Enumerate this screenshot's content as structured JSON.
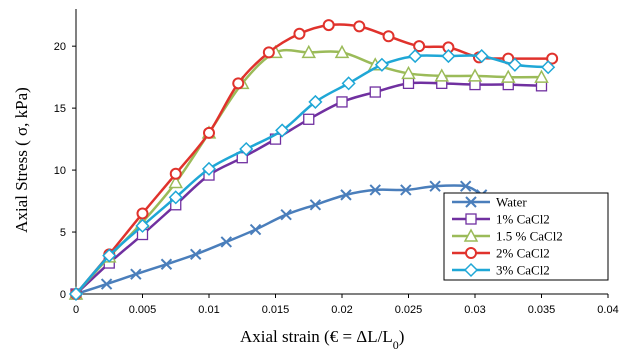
{
  "chart_data": {
    "type": "line",
    "xlabel": "Axial strain (€ = ΔL/L",
    "xlabel_sub": "0",
    "xlabel_close": ")",
    "ylabel": "Axial Stress ( σ, kPa)",
    "xlim": [
      0,
      0.04
    ],
    "ylim": [
      0,
      23
    ],
    "xticks": [
      0,
      0.005,
      0.01,
      0.015,
      0.02,
      0.025,
      0.03,
      0.035,
      0.04
    ],
    "xtick_labels": [
      "0",
      "0.005",
      "0.01",
      "0.015",
      "0.02",
      "0.025",
      "0.03",
      "0.035",
      "0.04"
    ],
    "yticks": [
      0,
      5,
      10,
      15,
      20
    ],
    "ytick_labels": [
      "0",
      "5",
      "10",
      "15",
      "20"
    ],
    "grid": false,
    "legend_position": "bottom-right",
    "series": [
      {
        "name": "Water",
        "color": "#4a7ebb",
        "marker": "x",
        "x": [
          0,
          0.0023,
          0.0045,
          0.0068,
          0.009,
          0.0113,
          0.0135,
          0.0158,
          0.018,
          0.0203,
          0.0225,
          0.0248,
          0.027,
          0.0293,
          0.0305
        ],
        "y": [
          0,
          0.8,
          1.6,
          2.4,
          3.2,
          4.2,
          5.2,
          6.4,
          7.2,
          8.0,
          8.4,
          8.4,
          8.7,
          8.7,
          8.0
        ]
      },
      {
        "name": "1% CaCl2",
        "color": "#7030a0",
        "marker": "square",
        "x": [
          0,
          0.0025,
          0.005,
          0.0075,
          0.01,
          0.0125,
          0.015,
          0.0175,
          0.02,
          0.0225,
          0.025,
          0.0275,
          0.03,
          0.0325,
          0.035
        ],
        "y": [
          0,
          2.5,
          4.8,
          7.2,
          9.6,
          11.0,
          12.5,
          14.1,
          15.5,
          16.3,
          17.0,
          17.0,
          16.9,
          16.9,
          16.8
        ]
      },
      {
        "name": "1.5 % CaCl2",
        "color": "#9bbb59",
        "marker": "triangle",
        "x": [
          0,
          0.0025,
          0.005,
          0.0075,
          0.01,
          0.0125,
          0.015,
          0.0175,
          0.02,
          0.0225,
          0.025,
          0.0275,
          0.03,
          0.0325,
          0.035
        ],
        "y": [
          0,
          3.0,
          5.8,
          9.0,
          13.0,
          17.0,
          19.5,
          19.5,
          19.5,
          18.5,
          17.8,
          17.6,
          17.6,
          17.5,
          17.5
        ]
      },
      {
        "name": "2% CaCl2",
        "color": "#e0322c",
        "marker": "circle",
        "x": [
          0,
          0.0025,
          0.005,
          0.0075,
          0.01,
          0.0122,
          0.0145,
          0.0168,
          0.019,
          0.0213,
          0.0235,
          0.0258,
          0.028,
          0.0303,
          0.0325,
          0.0358
        ],
        "y": [
          0,
          3.2,
          6.5,
          9.7,
          13.0,
          17.0,
          19.5,
          21.0,
          21.7,
          21.6,
          20.8,
          20.0,
          19.9,
          19.1,
          19.0,
          19.0
        ]
      },
      {
        "name": "3% CaCl2",
        "color": "#1fa7d6",
        "marker": "diamond",
        "x": [
          0,
          0.0025,
          0.005,
          0.0075,
          0.01,
          0.0128,
          0.0155,
          0.018,
          0.0205,
          0.023,
          0.0255,
          0.028,
          0.0305,
          0.033,
          0.0355
        ],
        "y": [
          0,
          3.1,
          5.5,
          7.8,
          10.1,
          11.7,
          13.2,
          15.5,
          17.0,
          18.5,
          19.2,
          19.2,
          19.2,
          18.5,
          18.3
        ]
      }
    ]
  }
}
